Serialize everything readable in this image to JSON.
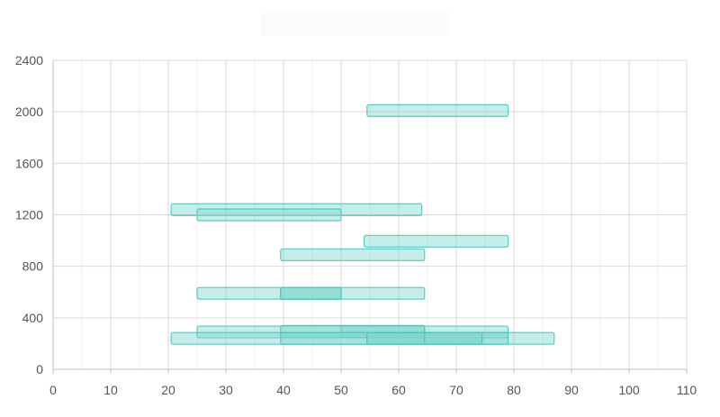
{
  "chart_data": {
    "type": "bar",
    "orientation": "horizontal-range",
    "title": "",
    "xlabel": "",
    "ylabel": "",
    "xlim": [
      0,
      110
    ],
    "ylim": [
      0,
      2400
    ],
    "x_ticks": [
      0,
      10,
      20,
      30,
      40,
      50,
      60,
      70,
      80,
      90,
      100,
      110
    ],
    "y_ticks": [
      0,
      400,
      800,
      1200,
      1600,
      2000,
      2400
    ],
    "grid": true,
    "colors": {
      "fill": "#7fd8cf",
      "stroke": "#4ec2bd",
      "grid": "#d9d9d9",
      "axis": "#bfbfbf"
    },
    "bars": [
      {
        "x_start": 54.5,
        "x_end": 79,
        "y": 2010
      },
      {
        "x_start": 20.5,
        "x_end": 64,
        "y": 1240
      },
      {
        "x_start": 25,
        "x_end": 50,
        "y": 1200
      },
      {
        "x_start": 54,
        "x_end": 79,
        "y": 995
      },
      {
        "x_start": 39.5,
        "x_end": 64.5,
        "y": 890
      },
      {
        "x_start": 25,
        "x_end": 50,
        "y": 590
      },
      {
        "x_start": 39.5,
        "x_end": 64.5,
        "y": 590
      },
      {
        "x_start": 39.5,
        "x_end": 50,
        "y": 590
      },
      {
        "x_start": 25,
        "x_end": 64.5,
        "y": 290
      },
      {
        "x_start": 50,
        "x_end": 79,
        "y": 290
      },
      {
        "x_start": 39.5,
        "x_end": 64.5,
        "y": 295
      },
      {
        "x_start": 20.5,
        "x_end": 64.5,
        "y": 240
      },
      {
        "x_start": 39.5,
        "x_end": 74.5,
        "y": 240
      },
      {
        "x_start": 54.5,
        "x_end": 87,
        "y": 240
      },
      {
        "x_start": 54.5,
        "x_end": 79,
        "y": 240
      },
      {
        "x_start": 64.5,
        "x_end": 74.5,
        "y": 240
      }
    ]
  }
}
